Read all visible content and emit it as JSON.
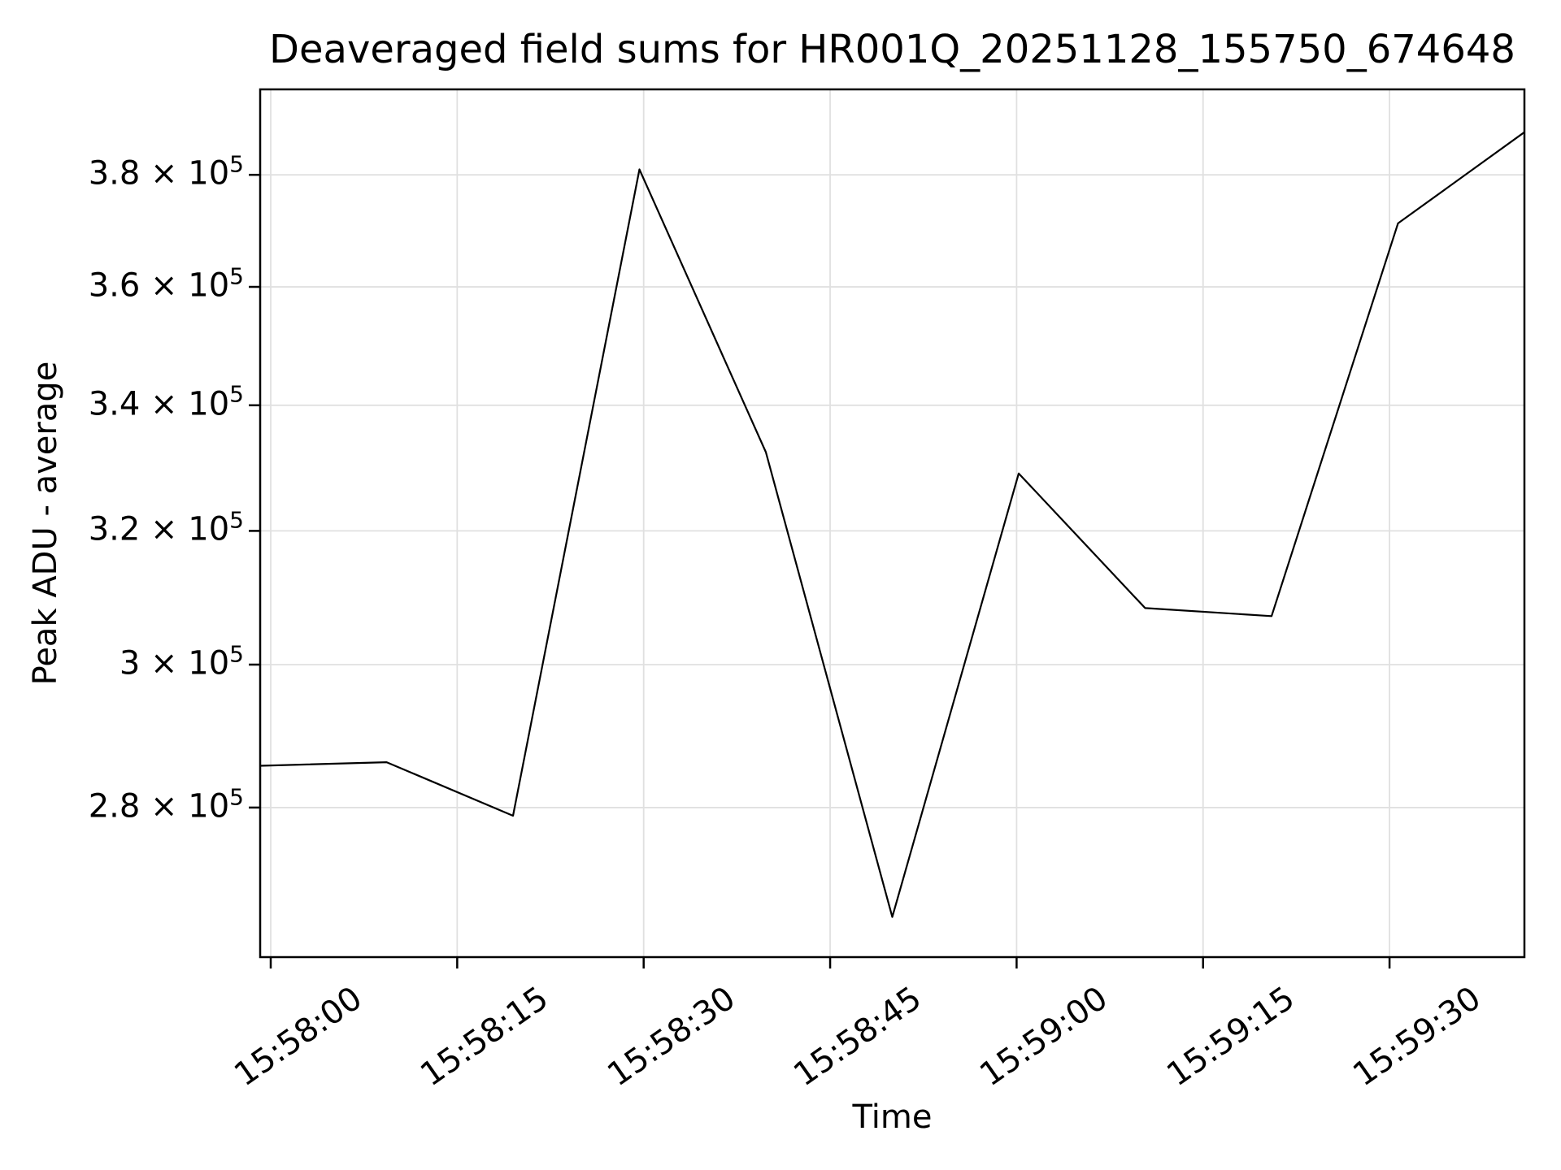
{
  "figure": {
    "background": "#ffffff",
    "text_color": "#000000"
  },
  "chart_data": {
    "type": "line",
    "title": "Deaveraged field sums for HR001Q_20251128_155750_674648",
    "xlabel": "Time",
    "ylabel": "Peak ADU - average",
    "yscale": "log",
    "grid": true,
    "grid_color": "#e0e0e0",
    "line_color": "#000000",
    "spine_color": "#000000",
    "legend": "none",
    "x_times": [
      "15:57:59",
      "15:58:09",
      "15:58:19",
      "15:58:30",
      "15:58:40",
      "15:58:50",
      "15:59:00",
      "15:59:10",
      "15:59:20",
      "15:59:31",
      "15:59:41"
    ],
    "x_seconds": [
      -0.85,
      9.32,
      19.49,
      29.66,
      39.83,
      50.0,
      60.17,
      70.34,
      80.51,
      90.68,
      100.85
    ],
    "values": [
      285700,
      286200,
      278900,
      381000,
      332400,
      265600,
      329000,
      308300,
      307100,
      371200,
      387900
    ],
    "xlim_seconds": [
      -0.85,
      100.85
    ],
    "ylim": [
      260500,
      396000
    ],
    "xticks": {
      "seconds": [
        0,
        15,
        30,
        45,
        60,
        75,
        90
      ],
      "labels": [
        "15:58:00",
        "15:58:15",
        "15:58:30",
        "15:58:45",
        "15:59:00",
        "15:59:15",
        "15:59:30"
      ]
    },
    "yticks": {
      "values": [
        380000,
        360000,
        340000,
        320000,
        300000,
        280000
      ],
      "mantissas": [
        "3.8",
        "3.6",
        "3.4",
        "3.2",
        "3",
        "2.8"
      ],
      "exponent": "5",
      "labels": [
        "3.8 × 10⁵",
        "3.6 × 10⁵",
        "3.4 × 10⁵",
        "3.2 × 10⁵",
        "3 × 10⁵",
        "2.8 × 10⁵"
      ]
    }
  }
}
